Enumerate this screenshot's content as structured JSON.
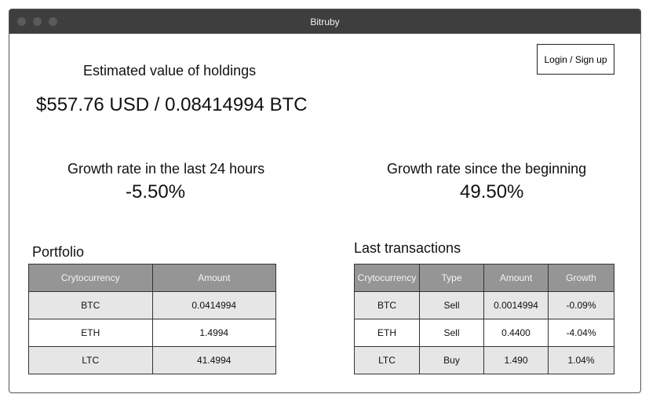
{
  "window": {
    "title": "Bitruby"
  },
  "header": {
    "login_label": "Login / Sign up"
  },
  "holdings": {
    "title": "Estimated value of holdings",
    "value": "$557.76 USD / 0.08414994 BTC"
  },
  "growth_24h": {
    "title": "Growth rate in the last 24 hours",
    "value": "-5.50%"
  },
  "growth_all": {
    "title": "Growth rate since the beginning",
    "value": "49.50%"
  },
  "portfolio": {
    "title": "Portfolio",
    "columns": [
      "Crytocurrency",
      "Amount"
    ],
    "rows": [
      [
        "BTC",
        "0.0414994"
      ],
      [
        "ETH",
        "1.4994"
      ],
      [
        "LTC",
        "41.4994"
      ]
    ]
  },
  "transactions": {
    "title": "Last transactions",
    "columns": [
      "Crytocurrency",
      "Type",
      "Amount",
      "Growth"
    ],
    "rows": [
      [
        "BTC",
        "Sell",
        "0.0014994",
        "-0.09%"
      ],
      [
        "ETH",
        "Sell",
        "0.4400",
        "-4.04%"
      ],
      [
        "LTC",
        "Buy",
        "1.490",
        "1.04%"
      ]
    ]
  },
  "colors": {
    "titlebar": "#3e3e3e",
    "table_header": "#959595",
    "row_shade": "#e6e6e6"
  }
}
